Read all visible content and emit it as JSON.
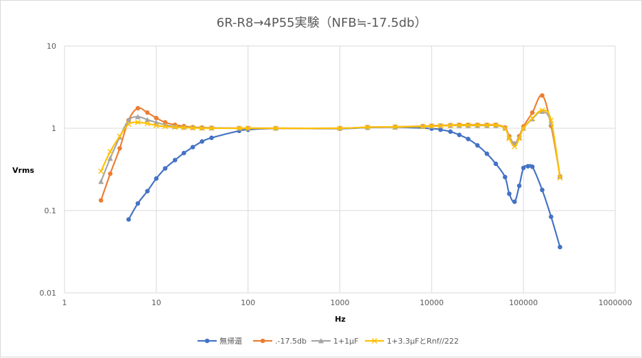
{
  "chart_data": {
    "type": "line",
    "title": "6R-R8→4P55実験（NFB≒-17.5db）",
    "xlabel": "Hz",
    "ylabel": "Vrms",
    "x_scale": "log",
    "y_scale": "log",
    "xlim": [
      1,
      1000000
    ],
    "ylim": [
      0.01,
      10
    ],
    "x_ticks": [
      "1",
      "10",
      "100",
      "1000",
      "10000",
      "100000",
      "1000000"
    ],
    "y_ticks": [
      "0.01",
      "0.1",
      "1",
      "10"
    ],
    "grid": true,
    "legend_position": "bottom",
    "series": [
      {
        "name": "無帰還",
        "color": "#4472c4",
        "marker": "circle",
        "points": [
          [
            5,
            0.078
          ],
          [
            6.3,
            0.122
          ],
          [
            8,
            0.172
          ],
          [
            10,
            0.245
          ],
          [
            12.5,
            0.325
          ],
          [
            16,
            0.41
          ],
          [
            20,
            0.5
          ],
          [
            25,
            0.59
          ],
          [
            31.5,
            0.69
          ],
          [
            40,
            0.765
          ],
          [
            80,
            0.93
          ],
          [
            100,
            0.96
          ],
          [
            200,
            0.995
          ],
          [
            1000,
            0.99
          ],
          [
            2000,
            1.02
          ],
          [
            4000,
            1.03
          ],
          [
            10000,
            0.99
          ],
          [
            12500,
            0.96
          ],
          [
            16000,
            0.91
          ],
          [
            20000,
            0.83
          ],
          [
            25000,
            0.74
          ],
          [
            31500,
            0.62
          ],
          [
            40000,
            0.49
          ],
          [
            50000,
            0.37
          ],
          [
            63000,
            0.255
          ],
          [
            70000,
            0.16
          ],
          [
            80000,
            0.128
          ],
          [
            90000,
            0.2
          ],
          [
            100000,
            0.33
          ],
          [
            112000,
            0.345
          ],
          [
            125000,
            0.34
          ],
          [
            160000,
            0.178
          ],
          [
            200000,
            0.084
          ],
          [
            250000,
            0.036
          ]
        ]
      },
      {
        "name": ".-17.5db",
        "color": "#ed7d31",
        "marker": "circle",
        "points": [
          [
            2.5,
            0.133
          ],
          [
            3.15,
            0.28
          ],
          [
            4,
            0.57
          ],
          [
            5,
            1.25
          ],
          [
            6.3,
            1.75
          ],
          [
            8,
            1.55
          ],
          [
            10,
            1.33
          ],
          [
            12.5,
            1.18
          ],
          [
            16,
            1.1
          ],
          [
            20,
            1.06
          ],
          [
            25,
            1.03
          ],
          [
            31.5,
            1.02
          ],
          [
            40,
            1.01
          ],
          [
            80,
            1.0
          ],
          [
            100,
            1.0
          ],
          [
            200,
            1.0
          ],
          [
            1000,
            1.0
          ],
          [
            2000,
            1.03
          ],
          [
            4000,
            1.04
          ],
          [
            8000,
            1.06
          ],
          [
            10000,
            1.07
          ],
          [
            12500,
            1.08
          ],
          [
            16000,
            1.09
          ],
          [
            20000,
            1.1
          ],
          [
            25000,
            1.1
          ],
          [
            31500,
            1.1
          ],
          [
            40000,
            1.1
          ],
          [
            50000,
            1.1
          ],
          [
            63000,
            1.02
          ],
          [
            70000,
            0.8
          ],
          [
            80000,
            0.65
          ],
          [
            90000,
            0.8
          ],
          [
            100000,
            1.05
          ],
          [
            125000,
            1.55
          ],
          [
            160000,
            2.5
          ],
          [
            200000,
            1.07
          ],
          [
            250000,
            0.26
          ]
        ]
      },
      {
        "name": "1+1μF",
        "color": "#a5a5a5",
        "marker": "triangle",
        "points": [
          [
            2.5,
            0.225
          ],
          [
            3.15,
            0.43
          ],
          [
            4,
            0.78
          ],
          [
            5,
            1.25
          ],
          [
            6.3,
            1.38
          ],
          [
            8,
            1.27
          ],
          [
            10,
            1.18
          ],
          [
            12.5,
            1.1
          ],
          [
            16,
            1.05
          ],
          [
            20,
            1.03
          ],
          [
            25,
            1.02
          ],
          [
            31.5,
            1.01
          ],
          [
            40,
            1.01
          ],
          [
            80,
            1.0
          ],
          [
            100,
            1.0
          ],
          [
            200,
            1.0
          ],
          [
            1000,
            1.0
          ],
          [
            2000,
            1.02
          ],
          [
            4000,
            1.03
          ],
          [
            8000,
            1.05
          ],
          [
            10000,
            1.06
          ],
          [
            12500,
            1.07
          ],
          [
            16000,
            1.08
          ],
          [
            20000,
            1.08
          ],
          [
            25000,
            1.08
          ],
          [
            31500,
            1.08
          ],
          [
            40000,
            1.08
          ],
          [
            50000,
            1.08
          ],
          [
            63000,
            1.0
          ],
          [
            70000,
            0.78
          ],
          [
            80000,
            0.65
          ],
          [
            90000,
            0.78
          ],
          [
            100000,
            1.0
          ],
          [
            125000,
            1.3
          ],
          [
            160000,
            1.6
          ],
          [
            200000,
            1.15
          ],
          [
            250000,
            0.26
          ]
        ]
      },
      {
        "name": "1+3.3μFとRnf//222",
        "color": "#ffc000",
        "marker": "x",
        "points": [
          [
            2.5,
            0.3
          ],
          [
            3.15,
            0.52
          ],
          [
            4,
            0.8
          ],
          [
            5,
            1.12
          ],
          [
            6.3,
            1.18
          ],
          [
            8,
            1.14
          ],
          [
            10,
            1.08
          ],
          [
            12.5,
            1.05
          ],
          [
            16,
            1.03
          ],
          [
            20,
            1.02
          ],
          [
            25,
            1.01
          ],
          [
            31.5,
            1.0
          ],
          [
            40,
            1.0
          ],
          [
            80,
            1.0
          ],
          [
            100,
            1.0
          ],
          [
            200,
            1.0
          ],
          [
            1000,
            1.0
          ],
          [
            2000,
            1.03
          ],
          [
            4000,
            1.04
          ],
          [
            8000,
            1.05
          ],
          [
            10000,
            1.06
          ],
          [
            12500,
            1.07
          ],
          [
            16000,
            1.08
          ],
          [
            20000,
            1.09
          ],
          [
            25000,
            1.09
          ],
          [
            31500,
            1.09
          ],
          [
            40000,
            1.09
          ],
          [
            50000,
            1.09
          ],
          [
            63000,
            1.0
          ],
          [
            70000,
            0.75
          ],
          [
            80000,
            0.6
          ],
          [
            90000,
            0.75
          ],
          [
            100000,
            1.0
          ],
          [
            125000,
            1.32
          ],
          [
            160000,
            1.65
          ],
          [
            200000,
            1.25
          ],
          [
            250000,
            0.25
          ]
        ]
      }
    ]
  }
}
